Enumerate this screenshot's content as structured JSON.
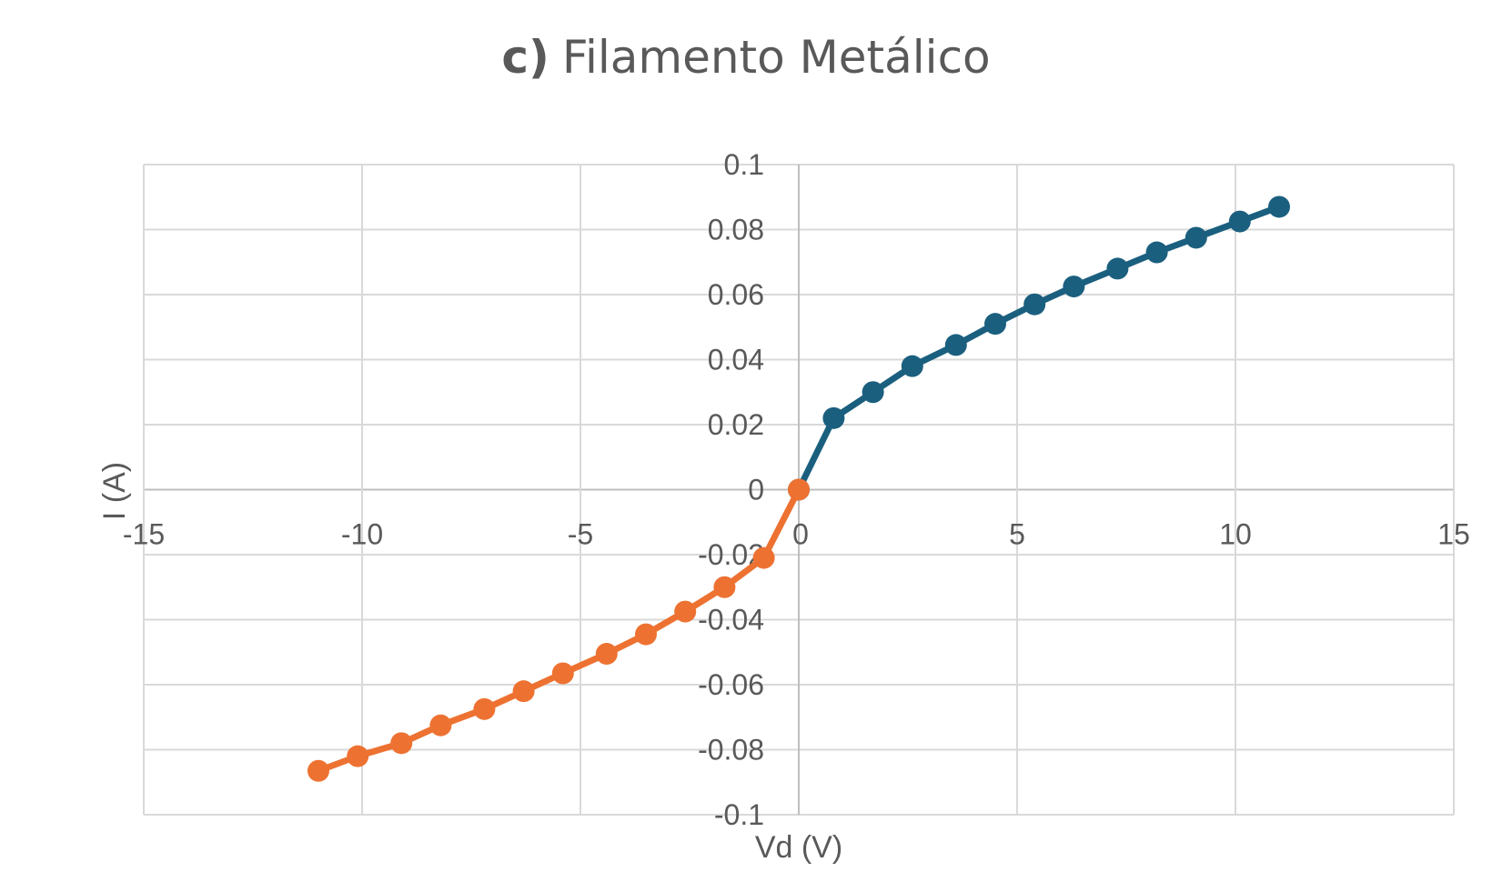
{
  "chart_data": {
    "type": "line",
    "title_prefix": "c)",
    "title": "Filamento Metálico",
    "xlabel": "Vd (V)",
    "ylabel": "I (A)",
    "xlim": [
      -15,
      15
    ],
    "ylim": [
      -0.1,
      0.1
    ],
    "x_ticks": [
      -15,
      -10,
      -5,
      0,
      5,
      10,
      15
    ],
    "x_tick_labels": [
      "-15",
      "-10",
      "-5",
      "0",
      "5",
      "10",
      "15"
    ],
    "y_ticks": [
      0.1,
      0.08,
      0.06,
      0.04,
      0.02,
      0,
      -0.02,
      -0.04,
      -0.06,
      -0.08,
      -0.1
    ],
    "y_tick_labels": [
      "0.1",
      "0.08",
      "0.06",
      "0.04",
      "0.02",
      "0",
      "-0.02",
      "-0.04",
      "-0.06",
      "-0.08",
      "-0.1"
    ],
    "grid": true,
    "legend": "none",
    "series": [
      {
        "color": "#1b5f7f",
        "points": [
          [
            0,
            0
          ],
          [
            0.8,
            0.022
          ],
          [
            1.7,
            0.03
          ],
          [
            2.6,
            0.038
          ],
          [
            3.6,
            0.0445
          ],
          [
            4.5,
            0.051
          ],
          [
            5.4,
            0.057
          ],
          [
            6.3,
            0.0625
          ],
          [
            7.3,
            0.068
          ],
          [
            8.2,
            0.073
          ],
          [
            9.1,
            0.0775
          ],
          [
            10.1,
            0.0825
          ],
          [
            11.0,
            0.087
          ]
        ]
      },
      {
        "color": "#ed7232",
        "points": [
          [
            0,
            0
          ],
          [
            -0.8,
            -0.021
          ],
          [
            -1.7,
            -0.03
          ],
          [
            -2.6,
            -0.0375
          ],
          [
            -3.5,
            -0.0445
          ],
          [
            -4.4,
            -0.0505
          ],
          [
            -5.4,
            -0.0565
          ],
          [
            -6.3,
            -0.062
          ],
          [
            -7.2,
            -0.0675
          ],
          [
            -8.2,
            -0.0725
          ],
          [
            -9.1,
            -0.078
          ],
          [
            -10.1,
            -0.082
          ],
          [
            -11.0,
            -0.0865
          ]
        ]
      }
    ]
  }
}
